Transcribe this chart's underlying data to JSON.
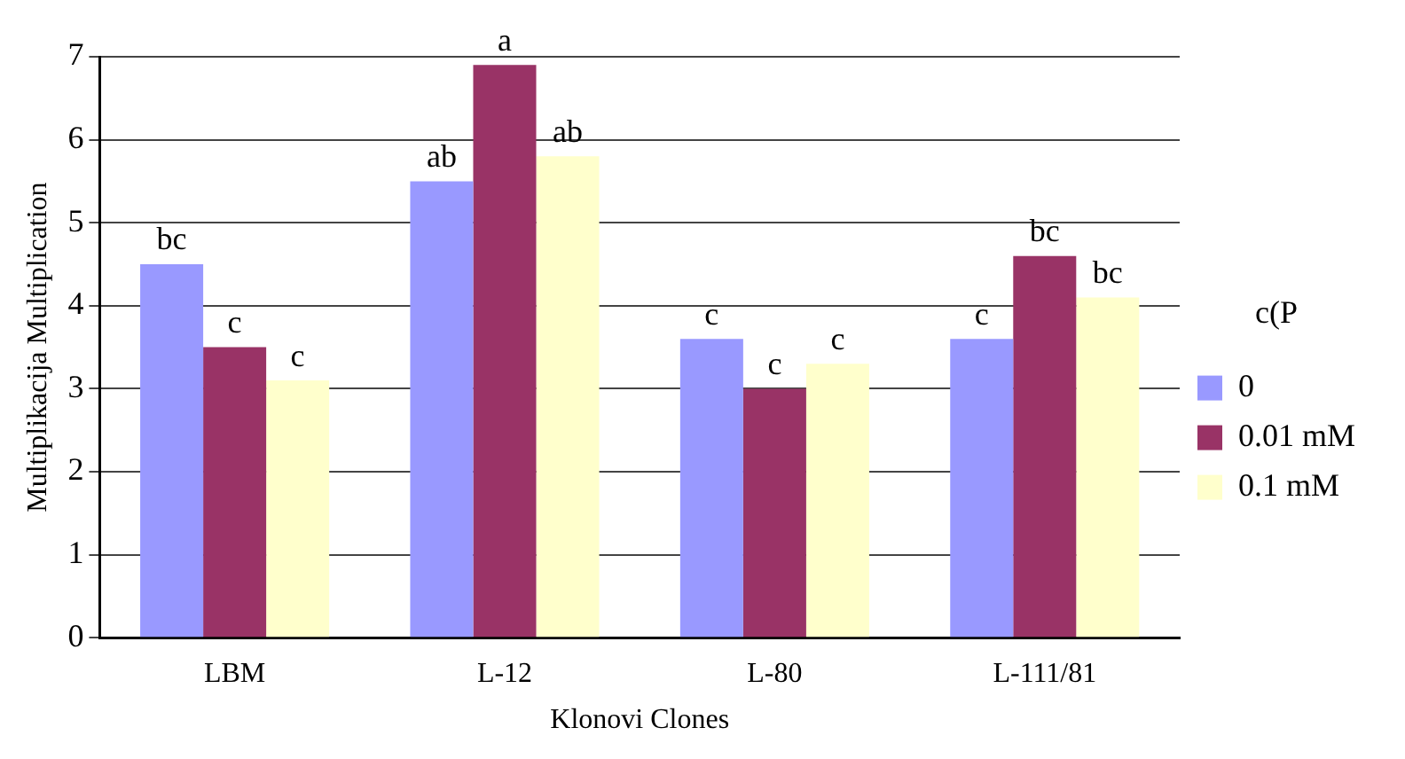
{
  "chart_data": {
    "type": "bar",
    "xlabel": "Klonovi Clones",
    "ylabel": "Multiplikacija Multiplication",
    "legend_title": "c(P",
    "categories": [
      "LBM",
      "L-12",
      "L-80",
      "L-111/81"
    ],
    "series": [
      {
        "name": "0",
        "color": "#9999ff",
        "values": [
          4.5,
          5.5,
          3.6,
          3.6
        ],
        "value_labels": [
          "bc",
          "ab",
          "c",
          "c"
        ]
      },
      {
        "name": "0.01 mM",
        "color": "#993366",
        "values": [
          3.5,
          6.9,
          3.0,
          4.6
        ],
        "value_labels": [
          "c",
          "a",
          "c",
          "bc"
        ]
      },
      {
        "name": "0.1 mM",
        "color": "#ffffcc",
        "values": [
          3.1,
          5.8,
          3.3,
          4.1
        ],
        "value_labels": [
          "c",
          "ab",
          "c",
          "bc"
        ]
      }
    ],
    "ylim": [
      0,
      7
    ],
    "yticks": [
      0,
      1,
      2,
      3,
      4,
      5,
      6,
      7
    ],
    "grid": "y",
    "legend": "right"
  }
}
